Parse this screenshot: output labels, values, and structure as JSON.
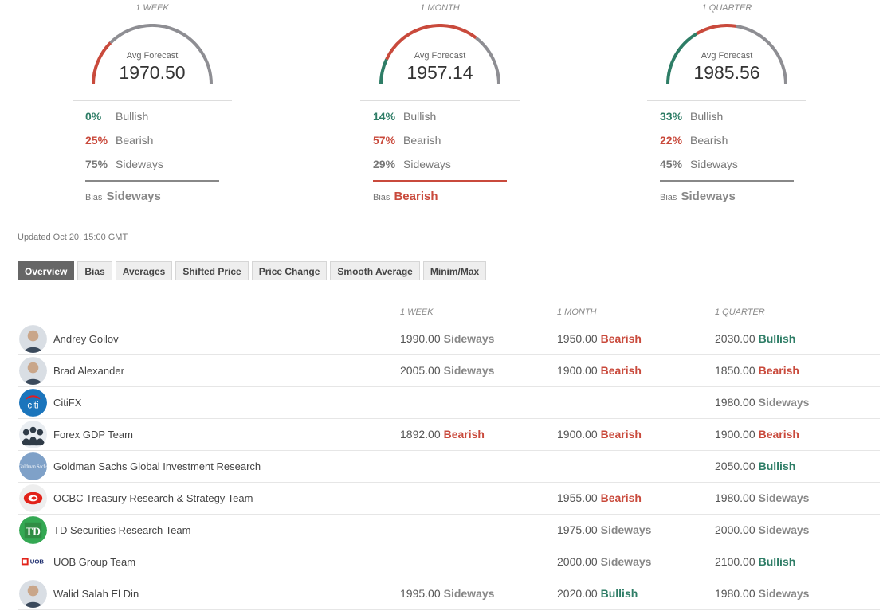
{
  "gauges": [
    {
      "period": "1 WEEK",
      "avg_label": "Avg Forecast",
      "avg_value": "1970.50",
      "bullish_pct": "0%",
      "bearish_pct": "25%",
      "sideways_pct": "75%",
      "bullish_label": "Bullish",
      "bearish_label": "Bearish",
      "sideways_label": "Sideways",
      "bias_label": "Bias",
      "bias_value": "Sideways",
      "bias_color": "#888888",
      "bullish_fraction": 0.0,
      "bearish_fraction": 0.25,
      "sideways_fraction": 0.75
    },
    {
      "period": "1 MONTH",
      "avg_label": "Avg Forecast",
      "avg_value": "1957.14",
      "bullish_pct": "14%",
      "bearish_pct": "57%",
      "sideways_pct": "29%",
      "bullish_label": "Bullish",
      "bearish_label": "Bearish",
      "sideways_label": "Sideways",
      "bias_label": "Bias",
      "bias_value": "Bearish",
      "bias_color": "#c94a3c",
      "bullish_fraction": 0.14,
      "bearish_fraction": 0.57,
      "sideways_fraction": 0.29
    },
    {
      "period": "1 QUARTER",
      "avg_label": "Avg Forecast",
      "avg_value": "1985.56",
      "bullish_pct": "33%",
      "bearish_pct": "22%",
      "sideways_pct": "45%",
      "bullish_label": "Bullish",
      "bearish_label": "Bearish",
      "sideways_label": "Sideways",
      "bias_label": "Bias",
      "bias_value": "Sideways",
      "bias_color": "#888888",
      "bullish_fraction": 0.33,
      "bearish_fraction": 0.22,
      "sideways_fraction": 0.45
    }
  ],
  "colors": {
    "bullish": "#2e7d66",
    "bearish": "#c94a3c",
    "sideways": "#8e8e93"
  },
  "updated": "Updated Oct 20, 15:00 GMT",
  "tabs": [
    "Overview",
    "Bias",
    "Averages",
    "Shifted Price",
    "Price Change",
    "Smooth Average",
    "Minim/Max"
  ],
  "active_tab": "Overview",
  "table": {
    "columns": [
      "1 WEEK",
      "1 MONTH",
      "1 QUARTER"
    ],
    "rows": [
      {
        "name": "Andrey Goilov",
        "avatar": "person-avatar",
        "week": {
          "value": "1990.00",
          "bias": "Sideways"
        },
        "month": {
          "value": "1950.00",
          "bias": "Bearish"
        },
        "quarter": {
          "value": "2030.00",
          "bias": "Bullish"
        }
      },
      {
        "name": "Brad Alexander",
        "avatar": "person-avatar",
        "week": {
          "value": "2005.00",
          "bias": "Sideways"
        },
        "month": {
          "value": "1900.00",
          "bias": "Bearish"
        },
        "quarter": {
          "value": "1850.00",
          "bias": "Bearish"
        }
      },
      {
        "name": "CitiFX",
        "avatar": "citi-logo",
        "logo_text": "citi",
        "week": null,
        "month": null,
        "quarter": {
          "value": "1980.00",
          "bias": "Sideways"
        }
      },
      {
        "name": "Forex GDP Team",
        "avatar": "team-avatar",
        "week": {
          "value": "1892.00",
          "bias": "Bearish"
        },
        "month": {
          "value": "1900.00",
          "bias": "Bearish"
        },
        "quarter": {
          "value": "1900.00",
          "bias": "Bearish"
        }
      },
      {
        "name": "Goldman Sachs Global Investment Research",
        "avatar": "goldman-logo",
        "logo_text": "Goldman Sachs",
        "week": null,
        "month": null,
        "quarter": {
          "value": "2050.00",
          "bias": "Bullish"
        }
      },
      {
        "name": "OCBC Treasury Research & Strategy Team",
        "avatar": "ocbc-logo",
        "week": null,
        "month": {
          "value": "1955.00",
          "bias": "Bearish"
        },
        "quarter": {
          "value": "1980.00",
          "bias": "Sideways"
        }
      },
      {
        "name": "TD Securities Research Team",
        "avatar": "td-logo",
        "logo_text": "TD",
        "week": null,
        "month": {
          "value": "1975.00",
          "bias": "Sideways"
        },
        "quarter": {
          "value": "2000.00",
          "bias": "Sideways"
        }
      },
      {
        "name": "UOB Group Team",
        "avatar": "uob-logo",
        "logo_text": "UOB",
        "week": null,
        "month": {
          "value": "2000.00",
          "bias": "Sideways"
        },
        "quarter": {
          "value": "2100.00",
          "bias": "Bullish"
        }
      },
      {
        "name": "Walid Salah El Din",
        "avatar": "person-avatar",
        "week": {
          "value": "1995.00",
          "bias": "Sideways"
        },
        "month": {
          "value": "2020.00",
          "bias": "Bullish"
        },
        "quarter": {
          "value": "1980.00",
          "bias": "Sideways"
        }
      }
    ]
  }
}
